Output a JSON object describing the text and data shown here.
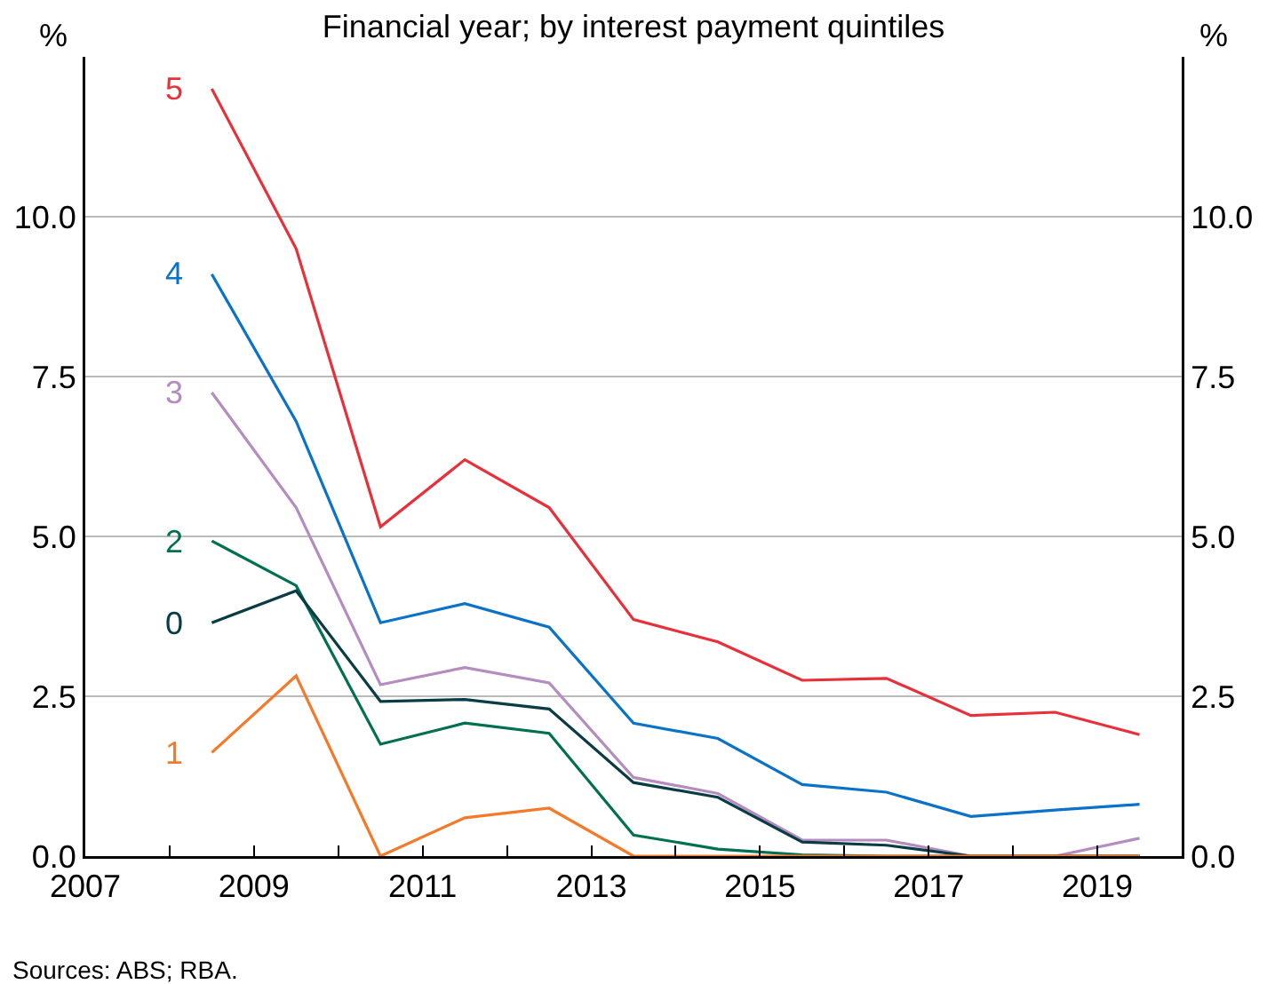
{
  "chart_data": {
    "type": "line",
    "title": "Financial year; by interest payment quintiles",
    "ylabel": "%",
    "y2label": "%",
    "x": [
      2008.5,
      2009.5,
      2010.5,
      2011.5,
      2012.5,
      2013.5,
      2014.5,
      2015.5,
      2016.5,
      2017.5,
      2018.5,
      2019.5
    ],
    "series": [
      {
        "name": "5",
        "color": "#e8303a",
        "values": [
          12.0,
          9.5,
          5.15,
          6.2,
          5.45,
          3.7,
          3.35,
          2.75,
          2.78,
          2.2,
          2.25,
          1.9
        ]
      },
      {
        "name": "4",
        "color": "#0a73c8",
        "values": [
          9.1,
          6.8,
          3.65,
          3.95,
          3.58,
          2.08,
          1.84,
          1.12,
          1.0,
          0.62,
          0.72,
          0.81
        ]
      },
      {
        "name": "3",
        "color": "#b48cc0",
        "values": [
          7.25,
          5.45,
          2.68,
          2.95,
          2.71,
          1.23,
          0.98,
          0.25,
          0.25,
          0,
          0,
          0.28
        ]
      },
      {
        "name": "2",
        "color": "#007050",
        "values": [
          4.93,
          4.23,
          1.75,
          2.08,
          1.92,
          0.33,
          0.11,
          0.02,
          0,
          0,
          0,
          0
        ]
      },
      {
        "name": "0",
        "color": "#0a3c46",
        "values": [
          3.65,
          4.15,
          2.42,
          2.45,
          2.3,
          1.15,
          0.92,
          0.22,
          0.17,
          0,
          0,
          0
        ]
      },
      {
        "name": "1",
        "color": "#f47a2a",
        "values": [
          1.62,
          2.82,
          0,
          0.6,
          0.75,
          0,
          0,
          0,
          0,
          0,
          0,
          0
        ]
      }
    ],
    "xlim": [
      2007,
      2020
    ],
    "xticks": [
      2007,
      {
        "value": 2008,
        "label": null
      },
      2009,
      {
        "value": 2010,
        "label": null
      },
      2011,
      {
        "value": 2012,
        "label": null
      },
      2013,
      {
        "value": 2014,
        "label": null
      },
      2015,
      {
        "value": 2016,
        "label": null
      },
      2017,
      {
        "value": 2018,
        "label": null
      },
      2019
    ],
    "ylim": [
      0,
      12.5
    ],
    "yticks": [
      {
        "value": 0,
        "label": "0.0"
      },
      2.5,
      {
        "value": 5,
        "label": "5.0"
      },
      7.5,
      {
        "value": 10,
        "label": "10.0"
      }
    ],
    "y2lim": [
      0,
      12.5
    ],
    "y2ticks": [
      {
        "value": 0,
        "label": "0.0"
      },
      2.5,
      {
        "value": 5,
        "label": "5.0"
      },
      7.5,
      {
        "value": 10,
        "label": "10.0"
      }
    ],
    "grid": "y",
    "legend": false,
    "marker": "none",
    "line_style": "solid",
    "annotations": [
      "Sources: ABS; RBA."
    ]
  }
}
